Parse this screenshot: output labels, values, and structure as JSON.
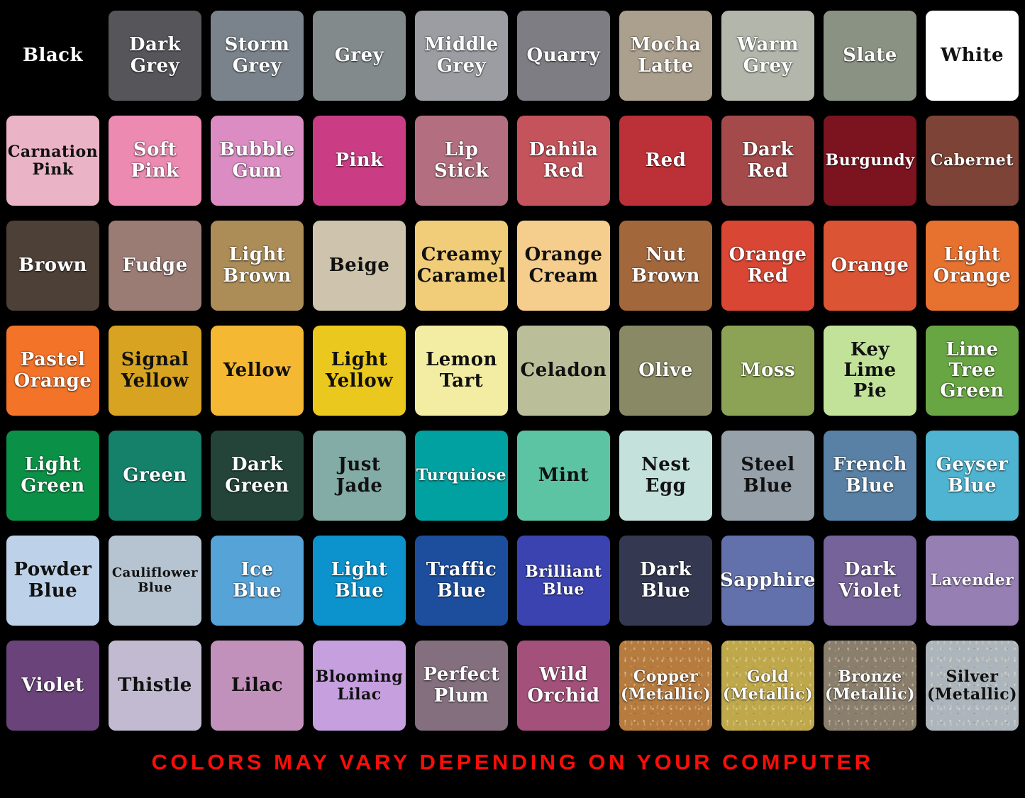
{
  "footer": {
    "disclaimer": "COLORS MAY VARY DEPENDING ON YOUR COMPUTER",
    "color": "#fb0d09"
  },
  "chart_data": {
    "type": "table",
    "title": "Color chart of named swatches",
    "grid_columns": 10,
    "grid_rows": 7,
    "background": "#000000",
    "rows": [
      [
        {
          "name": "Black",
          "hex": "#000000",
          "text": "#ffffff"
        },
        {
          "name": "Dark Grey",
          "hex": "#56565a",
          "text": "#ffffff"
        },
        {
          "name": "Storm Grey",
          "hex": "#7a838b",
          "text": "#ffffff"
        },
        {
          "name": "Grey",
          "hex": "#828a8b",
          "text": "#ffffff"
        },
        {
          "name": "Middle Grey",
          "hex": "#9b9da2",
          "text": "#ffffff"
        },
        {
          "name": "Quarry",
          "hex": "#7e7d83",
          "text": "#ffffff"
        },
        {
          "name": "Mocha Latte",
          "hex": "#ab9f8d",
          "text": "#ffffff"
        },
        {
          "name": "Warm Grey",
          "hex": "#b3b6ab",
          "text": "#ffffff"
        },
        {
          "name": "Slate",
          "hex": "#8a9383",
          "text": "#ffffff"
        },
        {
          "name": "White",
          "hex": "#ffffff",
          "text": "#111111"
        }
      ],
      [
        {
          "name": "Carnation Pink",
          "hex": "#eab4c6",
          "text": "#111111",
          "size": "md"
        },
        {
          "name": "Soft Pink",
          "hex": "#ec8ab1",
          "text": "#ffffff"
        },
        {
          "name": "Bubble Gum",
          "hex": "#db8dc3",
          "text": "#ffffff"
        },
        {
          "name": "Pink",
          "hex": "#ca3c84",
          "text": "#ffffff"
        },
        {
          "name": "Lip Stick",
          "hex": "#b36f7f",
          "text": "#ffffff"
        },
        {
          "name": "Dahila Red",
          "hex": "#c4535b",
          "text": "#ffffff"
        },
        {
          "name": "Red",
          "hex": "#bc3037",
          "text": "#ffffff"
        },
        {
          "name": "Dark Red",
          "hex": "#a44a4a",
          "text": "#ffffff"
        },
        {
          "name": "Burgundy",
          "hex": "#7b141f",
          "text": "#ffffff",
          "size": "md"
        },
        {
          "name": "Cabernet",
          "hex": "#7d4336",
          "text": "#ffffff",
          "size": "md"
        }
      ],
      [
        {
          "name": "Brown",
          "hex": "#4d4037",
          "text": "#ffffff"
        },
        {
          "name": "Fudge",
          "hex": "#9a7c74",
          "text": "#ffffff"
        },
        {
          "name": "Light Brown",
          "hex": "#ac8c57",
          "text": "#ffffff"
        },
        {
          "name": "Beige",
          "hex": "#cec4ad",
          "text": "#111111"
        },
        {
          "name": "Creamy Caramel",
          "hex": "#f2cd79",
          "text": "#111111"
        },
        {
          "name": "Orange Cream",
          "hex": "#f5cd8d",
          "text": "#111111"
        },
        {
          "name": "Nut Brown",
          "hex": "#a3673c",
          "text": "#ffffff"
        },
        {
          "name": "Orange Red",
          "hex": "#da4634",
          "text": "#ffffff"
        },
        {
          "name": "Orange",
          "hex": "#db5434",
          "text": "#ffffff"
        },
        {
          "name": "Light Orange",
          "hex": "#e7712e",
          "text": "#ffffff"
        }
      ],
      [
        {
          "name": "Pastel Orange",
          "hex": "#f37328",
          "text": "#ffffff"
        },
        {
          "name": "Signal Yellow",
          "hex": "#d8a321",
          "text": "#111111"
        },
        {
          "name": "Yellow",
          "hex": "#f5b833",
          "text": "#111111"
        },
        {
          "name": "Light Yellow",
          "hex": "#ebc81d",
          "text": "#111111"
        },
        {
          "name": "Lemon Tart",
          "hex": "#f3eda3",
          "text": "#111111"
        },
        {
          "name": "Celadon",
          "hex": "#bbbf99",
          "text": "#111111"
        },
        {
          "name": "Olive",
          "hex": "#898a65",
          "text": "#ffffff"
        },
        {
          "name": "Moss",
          "hex": "#8ca355",
          "text": "#ffffff"
        },
        {
          "name": "Key Lime Pie",
          "hex": "#c2e29a",
          "text": "#111111"
        },
        {
          "name": "Lime Tree Green",
          "hex": "#68a643",
          "text": "#ffffff"
        }
      ],
      [
        {
          "name": "Light Green",
          "hex": "#0b9147",
          "text": "#ffffff"
        },
        {
          "name": "Green",
          "hex": "#15816a",
          "text": "#ffffff"
        },
        {
          "name": "Dark Green",
          "hex": "#24443a",
          "text": "#ffffff"
        },
        {
          "name": "Just Jade",
          "hex": "#83aca7",
          "text": "#111111"
        },
        {
          "name": "Turquiose",
          "hex": "#00a1a0",
          "text": "#ffffff",
          "size": "md"
        },
        {
          "name": "Mint",
          "hex": "#5cc3a3",
          "text": "#111111"
        },
        {
          "name": "Nest Egg",
          "hex": "#c5e1db",
          "text": "#111111"
        },
        {
          "name": "Steel Blue",
          "hex": "#97a1aa",
          "text": "#111111"
        },
        {
          "name": "French Blue",
          "hex": "#5981a5",
          "text": "#ffffff"
        },
        {
          "name": "Geyser Blue",
          "hex": "#4eb4d1",
          "text": "#ffffff"
        }
      ],
      [
        {
          "name": "Powder Blue",
          "hex": "#bdd2e9",
          "text": "#111111"
        },
        {
          "name": "Cauliflower Blue",
          "hex": "#b6c3d0",
          "text": "#111111",
          "size": "sm"
        },
        {
          "name": "Ice Blue",
          "hex": "#56a3d8",
          "text": "#ffffff"
        },
        {
          "name": "Light Blue",
          "hex": "#0c92cd",
          "text": "#ffffff"
        },
        {
          "name": "Traffic Blue",
          "hex": "#1d4e9d",
          "text": "#ffffff"
        },
        {
          "name": "Brilliant Blue",
          "hex": "#3a43af",
          "text": "#ffffff",
          "size": "md"
        },
        {
          "name": "Dark Blue",
          "hex": "#343951",
          "text": "#ffffff"
        },
        {
          "name": "Sapphire",
          "hex": "#6270ab",
          "text": "#ffffff"
        },
        {
          "name": "Dark Violet",
          "hex": "#766399",
          "text": "#ffffff"
        },
        {
          "name": "Lavender",
          "hex": "#967fb3",
          "text": "#ffffff",
          "size": "md"
        }
      ],
      [
        {
          "name": "Violet",
          "hex": "#694379",
          "text": "#ffffff"
        },
        {
          "name": "Thistle",
          "hex": "#c1bad0",
          "text": "#111111"
        },
        {
          "name": "Lilac",
          "hex": "#c291bb",
          "text": "#111111"
        },
        {
          "name": "Blooming Lilac",
          "hex": "#c69fdf",
          "text": "#111111",
          "size": "md"
        },
        {
          "name": "Perfect Plum",
          "hex": "#836f7d",
          "text": "#ffffff"
        },
        {
          "name": "Wild Orchid",
          "hex": "#a3517a",
          "text": "#ffffff"
        },
        {
          "name": "Copper (Metallic)",
          "hex": "#b67b3e",
          "text": "#ffffff",
          "size": "md",
          "metallic": true
        },
        {
          "name": "Gold (Metallic)",
          "hex": "#bea84b",
          "text": "#ffffff",
          "size": "md",
          "metallic": true
        },
        {
          "name": "Bronze (Metallic)",
          "hex": "#8a7e6d",
          "text": "#ffffff",
          "size": "md",
          "metallic": true
        },
        {
          "name": "Silver (Metallic)",
          "hex": "#adb5bc",
          "text": "#111111",
          "size": "md",
          "metallic": true
        }
      ]
    ]
  }
}
